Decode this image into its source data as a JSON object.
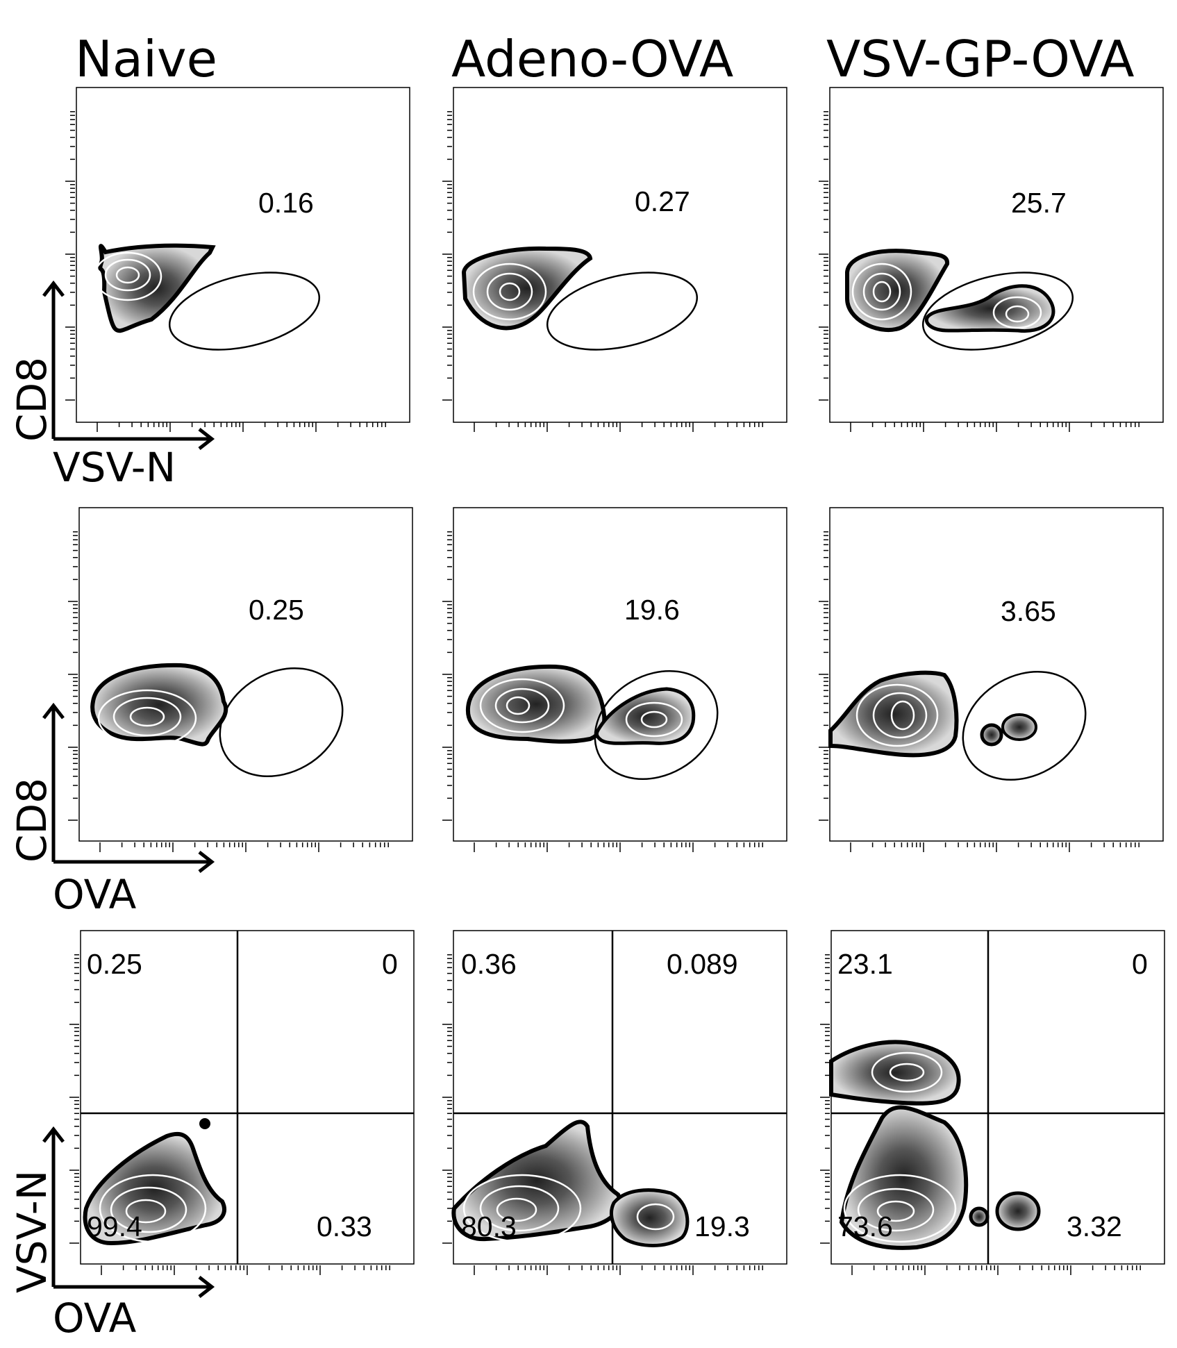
{
  "chart_data": [
    {
      "type": "contour",
      "column": "Naive",
      "row": 1,
      "xlabel": "VSV-N",
      "ylabel": "CD8",
      "gate_frequency": "0.16",
      "x_scale": "log",
      "y_scale": "log",
      "populations": [
        {
          "center": [
            420,
            2400
          ],
          "density": "high",
          "in_gate": false
        }
      ]
    },
    {
      "type": "contour",
      "column": "Adeno-OVA",
      "row": 1,
      "xlabel": "VSV-N",
      "ylabel": "CD8",
      "gate_frequency": "0.27",
      "x_scale": "log",
      "y_scale": "log",
      "populations": [
        {
          "center": [
            420,
            1600
          ],
          "density": "high",
          "in_gate": false
        }
      ]
    },
    {
      "type": "contour",
      "column": "VSV-GP-OVA",
      "row": 1,
      "xlabel": "VSV-N",
      "ylabel": "CD8",
      "gate_frequency": "25.7",
      "x_scale": "log",
      "y_scale": "log",
      "populations": [
        {
          "center": [
            420,
            1500
          ],
          "density": "high",
          "in_gate": false
        },
        {
          "center": [
            36000,
            480
          ],
          "density": "medium",
          "in_gate": true
        }
      ]
    },
    {
      "type": "contour",
      "column": "Naive",
      "row": 2,
      "xlabel": "OVA",
      "ylabel": "CD8",
      "gate_frequency": "0.25",
      "x_scale": "log",
      "y_scale": "log",
      "populations": [
        {
          "center": [
            510,
            1300
          ],
          "density": "high",
          "in_gate": false
        }
      ]
    },
    {
      "type": "contour",
      "column": "Adeno-OVA",
      "row": 2,
      "xlabel": "OVA",
      "ylabel": "CD8",
      "gate_frequency": "19.6",
      "x_scale": "log",
      "y_scale": "log",
      "populations": [
        {
          "center": [
            500,
            1000
          ],
          "density": "high",
          "in_gate": false
        },
        {
          "center": [
            36000,
            650
          ],
          "density": "medium",
          "in_gate": true
        }
      ]
    },
    {
      "type": "contour",
      "column": "VSV-GP-OVA",
      "row": 2,
      "xlabel": "OVA",
      "ylabel": "CD8",
      "gate_frequency": "3.65",
      "x_scale": "log",
      "y_scale": "log",
      "populations": [
        {
          "center": [
            550,
            600
          ],
          "density": "high",
          "in_gate": false
        },
        {
          "center": [
            16000,
            320
          ],
          "density": "low",
          "in_gate": true
        }
      ]
    },
    {
      "type": "contour",
      "column": "Naive",
      "row": 3,
      "xlabel": "OVA",
      "ylabel": "VSV-N",
      "quadrants": {
        "top_left": "0.25",
        "top_right": "0",
        "bottom_left": "99.4",
        "bottom_right": "0.33"
      },
      "x_scale": "log",
      "y_scale": "log",
      "populations": [
        {
          "center": [
            420,
            200
          ],
          "density": "high",
          "quadrant": "bottom_left"
        }
      ]
    },
    {
      "type": "contour",
      "column": "Adeno-OVA",
      "row": 3,
      "xlabel": "OVA",
      "ylabel": "VSV-N",
      "quadrants": {
        "top_left": "0.36",
        "top_right": "0.089",
        "bottom_left": "80.3",
        "bottom_right": "19.3"
      },
      "x_scale": "log",
      "y_scale": "log",
      "populations": [
        {
          "center": [
            420,
            200
          ],
          "density": "high",
          "quadrant": "bottom_left"
        },
        {
          "center": [
            28000,
            170
          ],
          "density": "medium",
          "quadrant": "bottom_right"
        }
      ]
    },
    {
      "type": "contour",
      "column": "VSV-GP-OVA",
      "row": 3,
      "xlabel": "OVA",
      "ylabel": "VSV-N",
      "quadrants": {
        "top_left": "23.1",
        "top_right": "0",
        "bottom_left": "73.6",
        "bottom_right": "3.32"
      },
      "x_scale": "log",
      "y_scale": "log",
      "populations": [
        {
          "center": [
            500,
            200
          ],
          "density": "high",
          "quadrant": "bottom_left"
        },
        {
          "center": [
            1200,
            5000
          ],
          "density": "medium",
          "quadrant": "top_left"
        },
        {
          "center": [
            9000,
            190
          ],
          "density": "low",
          "quadrant": "bottom_right"
        }
      ]
    }
  ],
  "figure": {
    "column_titles": [
      "Naive",
      "Adeno-OVA",
      "VSV-GP-OVA"
    ],
    "row_axis_titles": [
      {
        "y": "CD8",
        "x": "VSV-N"
      },
      {
        "y": "CD8",
        "x": "OVA"
      },
      {
        "y": "VSV-N",
        "x": "OVA"
      }
    ],
    "colors": {
      "contour_dark": "#1a1a1a",
      "contour_light": "#e8e8e8",
      "line": "#000000"
    }
  }
}
